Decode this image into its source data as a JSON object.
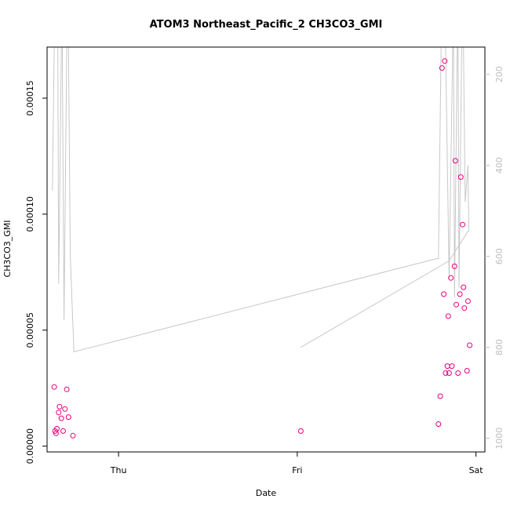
{
  "chart_data": {
    "type": "scatter",
    "title": "ATOM3 Northeast_Pacific_2 CH3CO3_GMI",
    "xlabel": "Date",
    "ylabel": "CH3CO3_GMI",
    "x_unit": "days after Wed 00:00",
    "xlim": [
      0.6,
      3.05
    ],
    "ylim": [
      -2.5e-06,
      0.000172
    ],
    "x_ticks": [
      {
        "value": 1,
        "label": "Thu"
      },
      {
        "value": 2,
        "label": "Fri"
      },
      {
        "value": 3,
        "label": "Sat"
      }
    ],
    "y_ticks": [
      {
        "value": 0,
        "label": "0.00000"
      },
      {
        "value": 5e-05,
        "label": "0.00005"
      },
      {
        "value": 0.0001,
        "label": "0.00010"
      },
      {
        "value": 0.00015,
        "label": "0.00015"
      }
    ],
    "right_axis": {
      "lim": [
        1030,
        140
      ],
      "reversed": true,
      "ticks": [
        {
          "value": 200,
          "label": "200"
        },
        {
          "value": 400,
          "label": "400"
        },
        {
          "value": 600,
          "label": "600"
        },
        {
          "value": 800,
          "label": "800"
        },
        {
          "value": 1000,
          "label": "1000"
        }
      ]
    },
    "colors": {
      "points": "#e6007e",
      "line": "#c8c8c8",
      "axis": "#000000",
      "right_axis": "#bdbdbd"
    },
    "points": [
      [
        0.64,
        2.55e-05
      ],
      [
        0.645,
        6.5e-06
      ],
      [
        0.65,
        5.5e-06
      ],
      [
        0.655,
        7.5e-06
      ],
      [
        0.665,
        1.45e-05
      ],
      [
        0.67,
        1.7e-05
      ],
      [
        0.68,
        1.2e-05
      ],
      [
        0.69,
        6.5e-06
      ],
      [
        0.7,
        1.6e-05
      ],
      [
        0.71,
        2.45e-05
      ],
      [
        0.72,
        1.25e-05
      ],
      [
        0.745,
        4.5e-06
      ],
      [
        2.02,
        6.5e-06
      ],
      [
        2.79,
        9.5e-06
      ],
      [
        2.8,
        2.15e-05
      ],
      [
        2.81,
        0.000163
      ],
      [
        2.82,
        6.55e-05
      ],
      [
        2.825,
        0.000166
      ],
      [
        2.83,
        3.15e-05
      ],
      [
        2.84,
        3.45e-05
      ],
      [
        2.845,
        5.6e-05
      ],
      [
        2.85,
        3.15e-05
      ],
      [
        2.86,
        7.25e-05
      ],
      [
        2.865,
        3.45e-05
      ],
      [
        2.88,
        7.75e-05
      ],
      [
        2.885,
        0.000123
      ],
      [
        2.89,
        6.1e-05
      ],
      [
        2.9,
        3.15e-05
      ],
      [
        2.91,
        6.55e-05
      ],
      [
        2.915,
        0.000116
      ],
      [
        2.925,
        9.55e-05
      ],
      [
        2.93,
        6.85e-05
      ],
      [
        2.935,
        5.95e-05
      ],
      [
        2.95,
        3.25e-05
      ],
      [
        2.955,
        6.25e-05
      ],
      [
        2.965,
        4.35e-05
      ]
    ],
    "altitude_line": [
      [
        0.63,
        455
      ],
      [
        0.64,
        120
      ],
      [
        0.66,
        120
      ],
      [
        0.665,
        660
      ],
      [
        0.68,
        120
      ],
      [
        0.685,
        120
      ],
      [
        0.695,
        740
      ],
      [
        0.71,
        120
      ],
      [
        0.72,
        120
      ],
      [
        0.73,
        600
      ],
      [
        0.75,
        810
      ],
      [
        2.78,
        605
      ],
      [
        2.79,
        605
      ],
      [
        2.805,
        120
      ],
      [
        2.83,
        120
      ],
      [
        2.85,
        650
      ],
      [
        2.87,
        120
      ],
      [
        2.875,
        120
      ],
      [
        2.88,
        690
      ],
      [
        2.895,
        120
      ],
      [
        2.9,
        120
      ],
      [
        2.905,
        670
      ],
      [
        2.92,
        120
      ],
      [
        2.93,
        120
      ],
      [
        2.94,
        480
      ],
      [
        2.955,
        400
      ],
      [
        2.96,
        545
      ],
      [
        2.955,
        545
      ],
      [
        2.85,
        610
      ],
      [
        2.02,
        800
      ]
    ]
  }
}
